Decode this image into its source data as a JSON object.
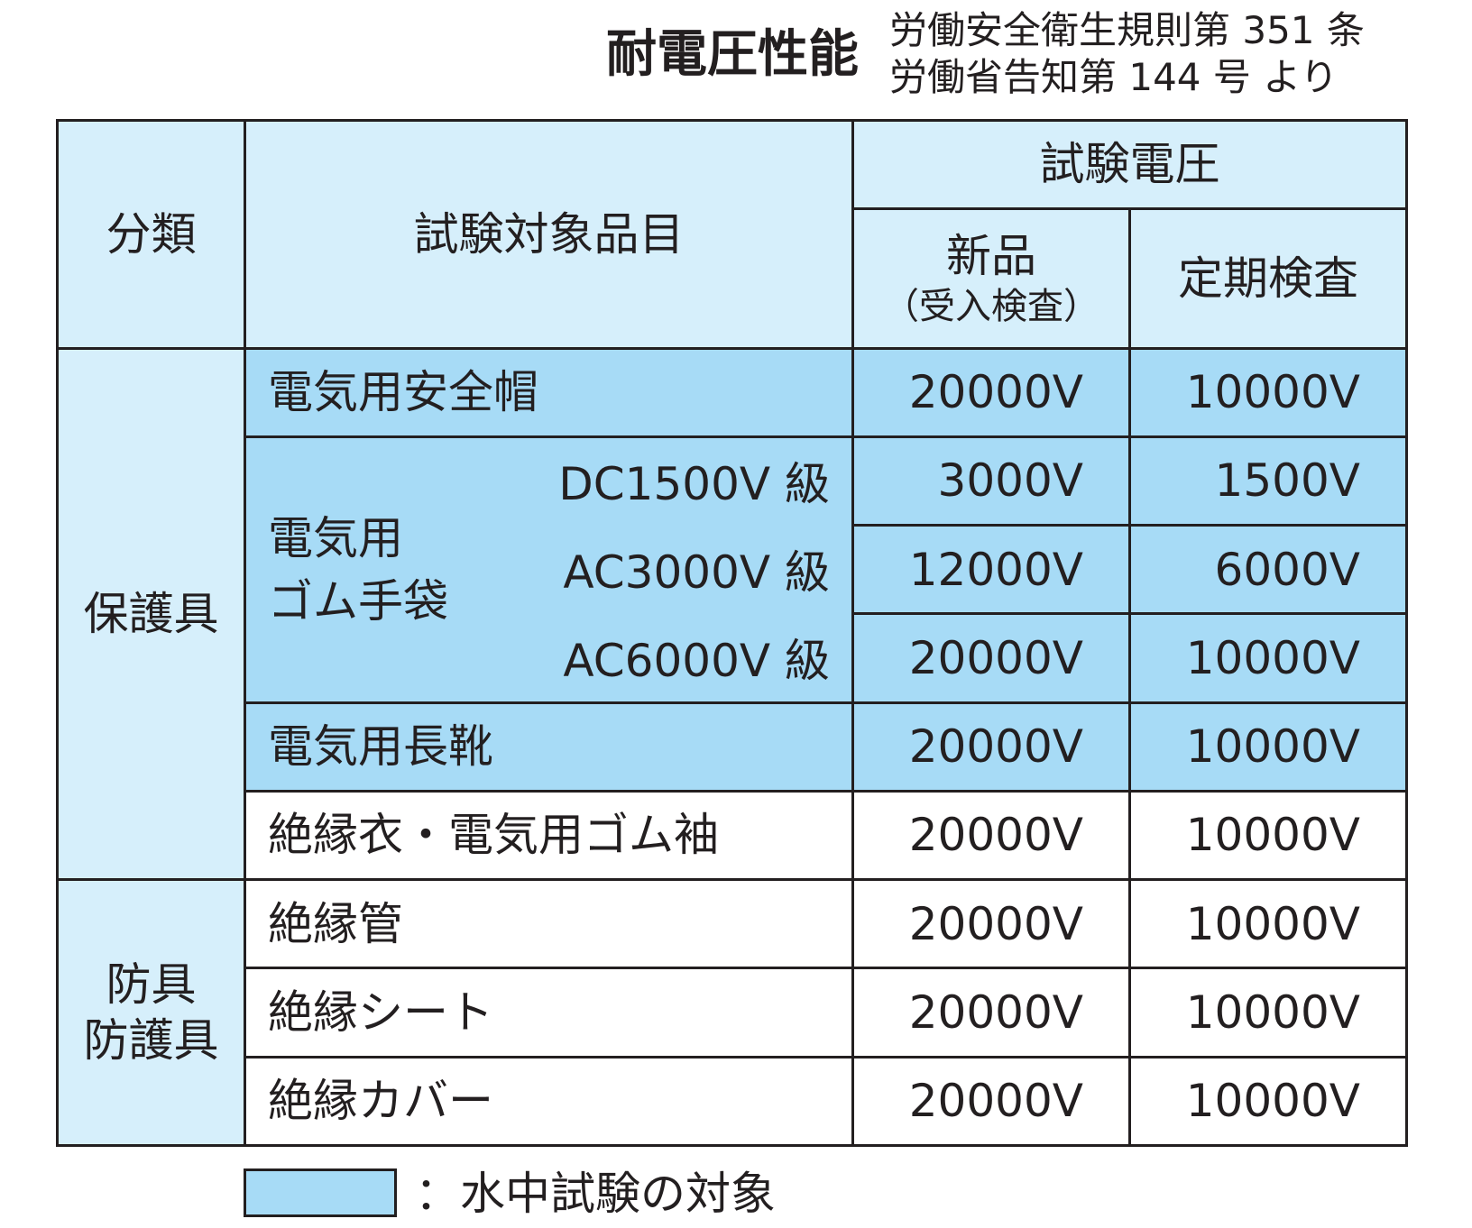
{
  "title": "耐電圧性能",
  "source_lines": [
    "労働安全衛生規則第 351 条",
    "労働省告知第 144 号 より"
  ],
  "headers": {
    "category": "分類",
    "item": "試験対象品目",
    "voltage": "試験電圧",
    "new": "新品",
    "new_sub": "（受入検査）",
    "periodic": "定期検査"
  },
  "categories": {
    "protective": "保護具",
    "guard_line1": "防具",
    "guard_line2": "防護具"
  },
  "rows": {
    "helmet": {
      "item": "電気用安全帽",
      "new": "20000V",
      "periodic": "10000V"
    },
    "gloves": {
      "label_line1": "電気用",
      "label_line2": "ゴム手袋",
      "grades": [
        {
          "grade": "DC1500V 級",
          "new": "3000V",
          "periodic": "1500V"
        },
        {
          "grade": "AC3000V 級",
          "new": "12000V",
          "periodic": "6000V"
        },
        {
          "grade": "AC6000V 級",
          "new": "20000V",
          "periodic": "10000V"
        }
      ]
    },
    "boots": {
      "item": "電気用長靴",
      "new": "20000V",
      "periodic": "10000V"
    },
    "sleeves": {
      "item": "絶縁衣・電気用ゴム袖",
      "new": "20000V",
      "periodic": "10000V"
    },
    "tube": {
      "item": "絶縁管",
      "new": "20000V",
      "periodic": "10000V"
    },
    "sheet": {
      "item": "絶縁シート",
      "new": "20000V",
      "periodic": "10000V"
    },
    "cover": {
      "item": "絶縁カバー",
      "new": "20000V",
      "periodic": "10000V"
    }
  },
  "legend": {
    "text": "：水中試験の対象",
    "color": "#a7dbf6"
  },
  "colors": {
    "header_bg": "#d6effb",
    "water_test_bg": "#a7dbf6"
  }
}
